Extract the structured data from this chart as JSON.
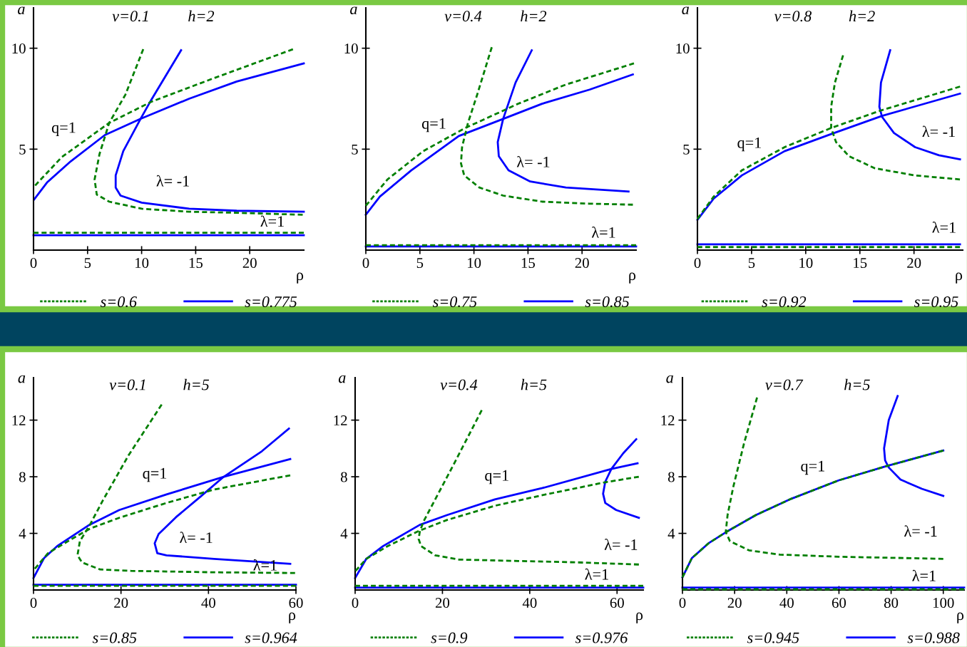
{
  "chart_data": [
    {
      "type": "line",
      "title": "v=0.1",
      "subtitle": "h=2",
      "xlabel": "ρ",
      "ylabel": "a",
      "xlim": [
        0,
        25
      ],
      "ylim": [
        0,
        12
      ],
      "xticks": [
        0,
        5,
        10,
        15,
        20
      ],
      "yticks": [
        5,
        10
      ],
      "legend": "bottom",
      "annotations": [
        "q=1",
        "λ= -1",
        "λ=1"
      ],
      "series": [
        {
          "name": "s=0.6",
          "color": "#007f00",
          "line_style": "dashed",
          "x": [
            0.15,
            2.6,
            7.0,
            10.9,
            16.6,
            24.0
          ],
          "values": [
            3.2,
            4.6,
            6.3,
            7.35,
            8.5,
            9.95
          ]
        },
        {
          "name": "s=0.775",
          "color": "#0000ff",
          "line_style": "solid",
          "x": [
            0.05,
            1.25,
            3.45,
            6.6,
            9.9,
            14.4,
            18.8,
            25.0
          ],
          "values": [
            2.5,
            3.35,
            4.4,
            5.7,
            6.5,
            7.5,
            8.35,
            9.25
          ]
        },
        {
          "color": "#007f00",
          "line_style": "dashed",
          "x": [
            10.15,
            8.5,
            7.0,
            6.1,
            5.65,
            5.85,
            7.0,
            10.0,
            14.4,
            18.8,
            24.9
          ],
          "values": [
            9.95,
            7.7,
            6.3,
            4.75,
            3.5,
            2.75,
            2.4,
            2.05,
            1.9,
            1.85,
            1.75
          ]
        },
        {
          "color": "#0000ff",
          "line_style": "solid",
          "x": [
            13.65,
            10.9,
            9.9,
            8.3,
            7.6,
            7.6,
            8.05,
            10.0,
            14.4,
            18.8,
            25.0
          ],
          "values": [
            9.9,
            7.45,
            6.5,
            4.9,
            3.7,
            3.1,
            2.7,
            2.35,
            2.05,
            1.95,
            1.9
          ]
        },
        {
          "color": "#007f00",
          "line_style": "dashed",
          "x": [
            0,
            25
          ],
          "values": [
            0.86,
            0.86
          ]
        },
        {
          "color": "#0000ff",
          "line_style": "solid",
          "x": [
            0,
            25
          ],
          "values": [
            0.74,
            0.74
          ]
        }
      ]
    },
    {
      "type": "line",
      "title": "v=0.4",
      "subtitle": "h=2",
      "xlabel": "ρ",
      "ylabel": "a",
      "xlim": [
        0,
        25
      ],
      "ylim": [
        0,
        12
      ],
      "xticks": [
        0,
        5,
        10,
        15,
        20
      ],
      "yticks": [
        5,
        10
      ],
      "legend": "bottom",
      "annotations": [
        "q=1",
        "λ= -1",
        "λ=1"
      ],
      "series": [
        {
          "name": "s=0.75",
          "color": "#007f00",
          "line_style": "dashed",
          "x": [
            0,
            2.0,
            5.3,
            9.2,
            14.1,
            18.5,
            24.8
          ],
          "values": [
            2.2,
            3.5,
            4.9,
            6.05,
            7.25,
            8.2,
            9.25
          ]
        },
        {
          "name": "s=0.85",
          "color": "#0000ff",
          "line_style": "solid",
          "x": [
            0,
            1.3,
            4.2,
            8.6,
            12.7,
            16.3,
            20.7,
            24.7
          ],
          "values": [
            1.75,
            2.65,
            3.95,
            5.65,
            6.5,
            7.25,
            7.95,
            8.7
          ]
        },
        {
          "color": "#007f00",
          "line_style": "dashed",
          "x": [
            11.65,
            10.3,
            9.45,
            8.9,
            8.8,
            9.1,
            10.5,
            12.7,
            16.3,
            20.7,
            24.7
          ],
          "values": [
            10.05,
            7.7,
            6.3,
            5.1,
            4.3,
            3.7,
            3.1,
            2.7,
            2.4,
            2.3,
            2.25
          ]
        },
        {
          "color": "#0000ff",
          "line_style": "solid",
          "x": [
            15.35,
            13.85,
            12.7,
            12.2,
            12.3,
            13.2,
            15.2,
            18.5,
            24.3
          ],
          "values": [
            9.9,
            8.3,
            6.5,
            5.35,
            4.65,
            3.95,
            3.4,
            3.1,
            2.9
          ]
        },
        {
          "color": "#007f00",
          "line_style": "dashed",
          "x": [
            0,
            25
          ],
          "values": [
            0.24,
            0.24
          ]
        },
        {
          "color": "#0000ff",
          "line_style": "solid",
          "x": [
            0,
            25
          ],
          "values": [
            0.18,
            0.18
          ]
        }
      ]
    },
    {
      "type": "line",
      "title": "v=0.8",
      "subtitle": "h=2",
      "xlabel": "ρ",
      "ylabel": "a",
      "xlim": [
        0,
        24.5
      ],
      "ylim": [
        0,
        12
      ],
      "xticks": [
        0,
        5,
        10,
        15,
        20
      ],
      "yticks": [
        5,
        10
      ],
      "legend": "bottom",
      "annotations": [
        "q=1",
        "λ= -1",
        "λ=1"
      ],
      "series": [
        {
          "name": "s=0.92",
          "color": "#007f00",
          "line_style": "dashed",
          "x": [
            0,
            1.5,
            4.1,
            8.05,
            12.35,
            16.85,
            24.25
          ],
          "values": [
            1.55,
            2.65,
            3.95,
            5.1,
            6.05,
            6.9,
            8.1
          ]
        },
        {
          "name": "s=0.95",
          "color": "#0000ff",
          "line_style": "solid",
          "x": [
            0,
            1.5,
            4.1,
            8.05,
            12.35,
            17.05,
            24.25
          ],
          "values": [
            1.5,
            2.55,
            3.7,
            4.9,
            5.75,
            6.65,
            7.75
          ]
        },
        {
          "color": "#007f00",
          "line_style": "dashed",
          "x": [
            13.45,
            12.7,
            12.35,
            12.35,
            12.8,
            14.0,
            16.4,
            20.1,
            24.25
          ],
          "values": [
            9.65,
            8.3,
            7.1,
            6.05,
            5.35,
            4.65,
            4.05,
            3.7,
            3.5
          ]
        },
        {
          "color": "#0000ff",
          "line_style": "solid",
          "x": [
            17.8,
            16.95,
            16.8,
            17.05,
            18.15,
            20.1,
            22.3,
            24.25
          ],
          "values": [
            9.9,
            8.3,
            7.1,
            6.6,
            5.8,
            5.1,
            4.7,
            4.5
          ]
        },
        {
          "color": "#007f00",
          "line_style": "dashed",
          "x": [
            0,
            24.25
          ],
          "values": [
            0.15,
            0.15
          ]
        },
        {
          "color": "#0000ff",
          "line_style": "solid",
          "x": [
            0,
            24.25
          ],
          "values": [
            0.29,
            0.29
          ]
        }
      ]
    },
    {
      "type": "line",
      "title": "v=0.1",
      "subtitle": "h=5",
      "xlabel": "ρ",
      "ylabel": "a",
      "xlim": [
        0,
        60
      ],
      "ylim": [
        0,
        15
      ],
      "xticks": [
        0,
        20,
        40,
        60
      ],
      "yticks": [
        4,
        8,
        12
      ],
      "legend": "bottom",
      "annotations": [
        "q=1",
        "λ= -1",
        "λ=1"
      ],
      "series": [
        {
          "name": "s=0.85",
          "color": "#007f00",
          "line_style": "dashed",
          "x": [
            0.3,
            3.3,
            8.7,
            13.0,
            19.6,
            30.4,
            41.3,
            58.7
          ],
          "values": [
            1.5,
            2.6,
            3.6,
            4.35,
            5.1,
            6.15,
            7.1,
            8.1
          ]
        },
        {
          "name": "s=0.964",
          "color": "#0000ff",
          "line_style": "solid",
          "x": [
            0,
            2.4,
            5.4,
            12.5,
            19.6,
            30.4,
            43.5,
            58.7
          ],
          "values": [
            0.85,
            2.25,
            3.1,
            4.55,
            5.65,
            6.75,
            8.0,
            9.25
          ]
        },
        {
          "color": "#007f00",
          "line_style": "dashed",
          "x": [
            29.3,
            21.7,
            15.8,
            12.8,
            10.6,
            10.05,
            11.1,
            15.2,
            22.3,
            41.3,
            59.8
          ],
          "values": [
            13.1,
            9.5,
            6.3,
            4.55,
            3.45,
            2.45,
            1.95,
            1.45,
            1.35,
            1.25,
            1.2
          ]
        },
        {
          "color": "#0000ff",
          "line_style": "solid",
          "x": [
            58.4,
            52.2,
            43.5,
            38.0,
            32.6,
            28.6,
            27.7,
            28.3,
            30.4,
            41.3,
            58.7
          ],
          "values": [
            11.4,
            9.8,
            8.0,
            6.55,
            5.15,
            3.95,
            3.3,
            2.6,
            2.45,
            2.2,
            1.85
          ]
        },
        {
          "color": "#007f00",
          "line_style": "dashed",
          "x": [
            0,
            60
          ],
          "values": [
            0.3,
            0.3
          ]
        },
        {
          "color": "#0000ff",
          "line_style": "solid",
          "x": [
            0,
            60
          ],
          "values": [
            0.37,
            0.37
          ]
        }
      ]
    },
    {
      "type": "line",
      "title": "v=0.4",
      "subtitle": "h=5",
      "xlabel": "ρ",
      "ylabel": "a",
      "xlim": [
        0,
        66
      ],
      "ylim": [
        0,
        15
      ],
      "xticks": [
        0,
        20,
        40,
        60
      ],
      "yticks": [
        4,
        8,
        12
      ],
      "legend": "bottom",
      "annotations": [
        "q=1",
        "λ= -1",
        "λ=1"
      ],
      "series": [
        {
          "name": "s=0.9",
          "color": "#007f00",
          "line_style": "dashed",
          "x": [
            0.1,
            2.55,
            7.45,
            14.8,
            21.1,
            32.0,
            42.9,
            57.1,
            65.0
          ],
          "values": [
            1.35,
            2.2,
            3.1,
            4.2,
            4.95,
            5.95,
            6.7,
            7.6,
            8.0
          ]
        },
        {
          "name": "s=0.976",
          "color": "#0000ff",
          "line_style": "solid",
          "x": [
            0,
            2.55,
            6.4,
            14.8,
            21.1,
            32.0,
            42.9,
            58.7,
            64.7
          ],
          "values": [
            0.85,
            2.2,
            3.1,
            4.6,
            5.3,
            6.4,
            7.2,
            8.55,
            8.95
          ]
        },
        {
          "color": "#007f00",
          "line_style": "dashed",
          "x": [
            29.0,
            22.2,
            15.6,
            14.8,
            14.55,
            15.1,
            18.35,
            23.8,
            37.4,
            51.1,
            65.0
          ],
          "values": [
            12.7,
            8.65,
            4.8,
            4.1,
            3.6,
            3.1,
            2.45,
            2.15,
            2.05,
            1.95,
            1.8
          ]
        },
        {
          "color": "#0000ff",
          "line_style": "solid",
          "x": [
            64.4,
            61.4,
            58.7,
            57.3,
            56.8,
            57.3,
            59.8,
            65.0
          ],
          "values": [
            10.65,
            9.65,
            8.55,
            7.65,
            6.8,
            6.15,
            5.65,
            5.1
          ]
        },
        {
          "color": "#007f00",
          "line_style": "dashed",
          "x": [
            0,
            66
          ],
          "values": [
            0.3,
            0.3
          ]
        },
        {
          "color": "#0000ff",
          "line_style": "solid",
          "x": [
            0,
            66
          ],
          "values": [
            0.17,
            0.17
          ]
        }
      ]
    },
    {
      "type": "line",
      "title": "v=0.7",
      "subtitle": "h=5",
      "xlabel": "ρ",
      "ylabel": "a",
      "xlim": [
        0,
        108
      ],
      "ylim": [
        0,
        15
      ],
      "xticks": [
        0,
        20,
        40,
        60,
        80,
        100
      ],
      "yticks": [
        4,
        8,
        12
      ],
      "legend": "bottom",
      "annotations": [
        "q=1",
        "λ= -1",
        "λ=1"
      ],
      "series": [
        {
          "name": "s=0.945",
          "color": "#007f00",
          "line_style": "dashed",
          "x": [
            0,
            3.6,
            10,
            16.8,
            28.2,
            41.8,
            60,
            78.2,
            100
          ],
          "values": [
            0.9,
            2.25,
            3.3,
            4.1,
            5.3,
            6.45,
            7.75,
            8.75,
            9.85
          ]
        },
        {
          "name": "s=0.988",
          "color": "#0000ff",
          "line_style": "solid",
          "x": [
            0,
            3.6,
            10,
            16.8,
            28.2,
            41.8,
            60,
            78.2,
            100
          ],
          "values": [
            0.9,
            2.25,
            3.3,
            4.1,
            5.3,
            6.45,
            7.75,
            8.75,
            9.85
          ]
        },
        {
          "color": "#007f00",
          "line_style": "dashed",
          "x": [
            28.6,
            23.6,
            19.5,
            17.3,
            16.6,
            18.2,
            25.5,
            37.3,
            60,
            100
          ],
          "values": [
            13.6,
            10.35,
            7.3,
            5.3,
            4.1,
            3.45,
            2.8,
            2.5,
            2.35,
            2.2
          ]
        },
        {
          "color": "#0000ff",
          "line_style": "solid",
          "x": [
            82.5,
            79.1,
            77.3,
            77.7,
            79.1,
            83.6,
            91.8,
            100
          ],
          "values": [
            13.7,
            12.0,
            10.0,
            9.15,
            8.65,
            7.8,
            7.15,
            6.65
          ]
        },
        {
          "color": "#007f00",
          "line_style": "dashed",
          "x": [
            0,
            108
          ],
          "values": [
            0.05,
            0.05
          ]
        },
        {
          "color": "#0000ff",
          "line_style": "solid",
          "x": [
            0,
            108
          ],
          "values": [
            0.17,
            0.17
          ]
        }
      ]
    }
  ]
}
